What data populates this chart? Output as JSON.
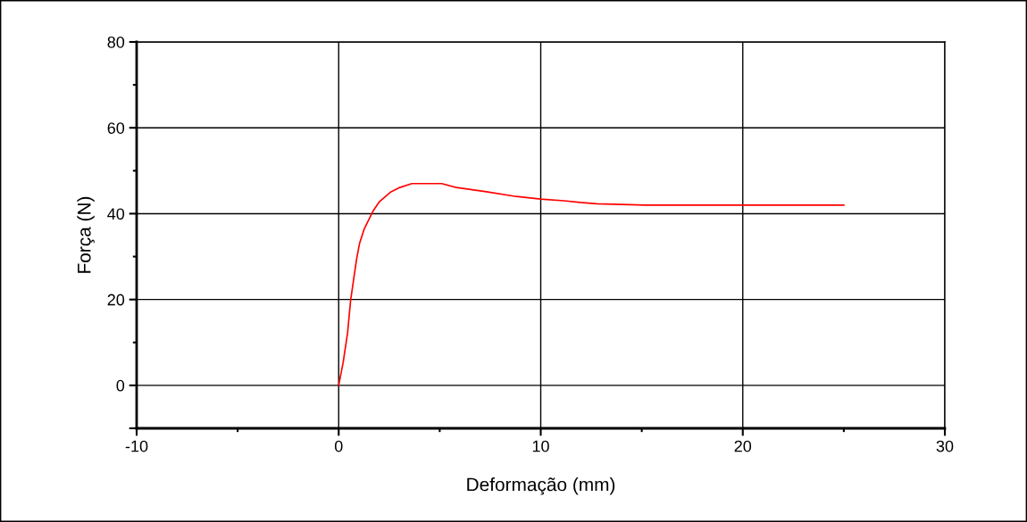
{
  "chart_data": {
    "type": "line",
    "xlabel": "Deformação (mm)",
    "ylabel": "Força (N)",
    "xlim": [
      -10,
      30
    ],
    "xticks": [
      -10,
      0,
      10,
      20,
      30
    ],
    "ylim": [
      -10,
      80
    ],
    "yticks": [
      {
        "value": -10,
        "label": null
      },
      0,
      20,
      40,
      60,
      80
    ],
    "grid": true,
    "marker": "none",
    "line_style": "solid",
    "series": [
      {
        "color": "#ff0000",
        "x": [
          0,
          0.22,
          0.44,
          0.59,
          0.74,
          0.89,
          1.03,
          1.26,
          1.48,
          1.7,
          2.0,
          2.59,
          3.03,
          3.62,
          5.1,
          5.83,
          7.31,
          8.79,
          10.0,
          11.15,
          11.96,
          12.77,
          15.2,
          25.0
        ],
        "values": [
          0,
          5.3,
          12.2,
          19.8,
          24.7,
          29.5,
          33.0,
          36.4,
          38.5,
          40.6,
          42.7,
          45.1,
          46.1,
          47.0,
          47.0,
          46.1,
          45.1,
          44.0,
          43.4,
          43.0,
          42.6,
          42.3,
          42.0,
          42.0
        ]
      }
    ]
  }
}
